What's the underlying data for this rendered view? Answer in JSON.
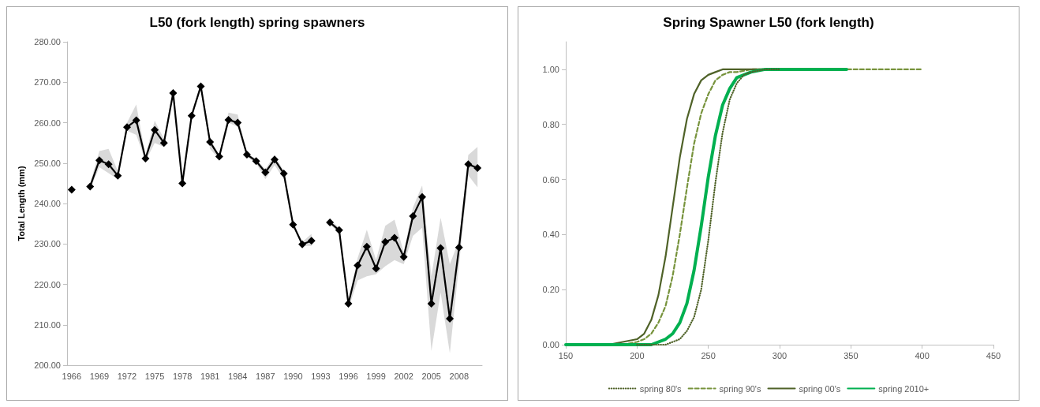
{
  "chart_data": [
    {
      "type": "line",
      "title": "L50 (fork length) spring spawners",
      "ylabel": "Total Length (mm)",
      "marker": "diamond",
      "legend": false,
      "grid": false,
      "categories": [
        "1966",
        null,
        null,
        "1969",
        null,
        null,
        "1972",
        null,
        null,
        "1975",
        null,
        null,
        "1978",
        null,
        null,
        "1981",
        null,
        null,
        "1984",
        null,
        null,
        "1987",
        null,
        null,
        "1990",
        null,
        null,
        "1993",
        null,
        null,
        "1996",
        null,
        null,
        "1999",
        null,
        null,
        "2002",
        null,
        null,
        "2005",
        null,
        null,
        "2008",
        null,
        null
      ],
      "ylim": [
        200,
        280
      ],
      "yticks": [
        {
          "value": 200,
          "label": "200.00"
        },
        {
          "value": 210,
          "label": "210.00"
        },
        {
          "value": 220,
          "label": "220.00"
        },
        {
          "value": 230,
          "label": "230.00"
        },
        {
          "value": 240,
          "label": "240.00"
        },
        {
          "value": 250,
          "label": "250.00"
        },
        {
          "value": 260,
          "label": "260.00"
        },
        {
          "value": 270,
          "label": "270.00"
        },
        {
          "value": 280,
          "label": "280.00"
        }
      ],
      "series": [
        {
          "color": "#000000",
          "values": [
            243.4,
            null,
            244.2,
            250.7,
            249.7,
            246.9,
            258.9,
            260.6,
            251.1,
            258.2,
            255.0,
            267.3,
            245.0,
            261.7,
            269.0,
            255.2,
            251.6,
            260.7,
            260.0,
            252.1,
            250.5,
            247.7,
            250.9,
            247.4,
            234.8,
            229.9,
            230.8,
            null,
            235.3,
            233.4,
            215.2,
            224.7,
            229.3,
            223.9,
            230.5,
            231.5,
            226.8,
            236.9,
            241.6,
            215.2,
            229.0,
            211.5,
            229.1,
            249.7,
            248.8
          ],
          "lower": [
            null,
            null,
            243.5,
            249,
            247.5,
            246,
            258,
            257,
            250.5,
            255,
            254,
            267,
            244,
            261,
            268.5,
            253.5,
            251,
            260,
            259,
            251.5,
            250,
            246,
            249.5,
            246,
            234.5,
            229.5,
            229.5,
            null,
            235,
            232.5,
            214,
            221,
            222,
            222.5,
            224.5,
            226,
            225,
            232,
            234,
            203.5,
            218,
            203,
            225,
            247,
            244
          ],
          "upper": [
            null,
            null,
            245,
            253,
            253.5,
            248,
            260,
            264.5,
            252,
            260.5,
            256,
            268.5,
            245.5,
            262.5,
            269.5,
            256,
            252,
            262.5,
            262,
            252.5,
            251,
            248.5,
            252,
            248,
            235.5,
            230.5,
            232.5,
            null,
            236,
            234,
            216,
            226.5,
            233.5,
            226,
            234.5,
            236,
            228,
            239,
            244.5,
            222,
            236.5,
            225,
            231,
            252,
            254
          ]
        }
      ]
    },
    {
      "type": "line",
      "title": "Spring Spawner L50 (fork length)",
      "marker": "none",
      "legend": "bottom",
      "grid": false,
      "xlim": [
        150,
        450
      ],
      "xticks": [
        150,
        200,
        250,
        300,
        350,
        400,
        450
      ],
      "ylim": [
        0,
        1.1
      ],
      "yticks": [
        {
          "value": 0,
          "label": "0.00"
        },
        {
          "value": 0.2,
          "label": "0.20"
        },
        {
          "value": 0.4,
          "label": "0.40"
        },
        {
          "value": 0.6,
          "label": "0.60"
        },
        {
          "value": 0.8,
          "label": "0.80"
        },
        {
          "value": 1,
          "label": "1.00"
        }
      ],
      "series": [
        {
          "name": "spring 80's",
          "color": "#4f6228",
          "line_style": "dotted",
          "x": [
            200,
            210,
            220,
            225,
            230,
            235,
            240,
            245,
            250,
            255,
            260,
            265,
            270,
            275,
            280,
            290,
            300
          ],
          "values": [
            0,
            0,
            0,
            0.01,
            0.02,
            0.05,
            0.1,
            0.2,
            0.38,
            0.59,
            0.77,
            0.89,
            0.95,
            0.98,
            0.99,
            1,
            1
          ]
        },
        {
          "name": "spring 90's",
          "color": "#77933c",
          "line_style": "dashed",
          "x": [
            150,
            180,
            190,
            200,
            205,
            210,
            215,
            220,
            225,
            230,
            235,
            240,
            245,
            250,
            255,
            260,
            265,
            270,
            280,
            300,
            400
          ],
          "values": [
            0,
            0,
            0,
            0.01,
            0.02,
            0.04,
            0.08,
            0.14,
            0.25,
            0.4,
            0.57,
            0.73,
            0.84,
            0.91,
            0.96,
            0.98,
            0.99,
            0.99,
            1,
            1,
            1
          ]
        },
        {
          "name": "spring 00's",
          "color": "#4f6228",
          "line_style": "solid",
          "x": [
            150,
            180,
            190,
            200,
            205,
            210,
            215,
            220,
            225,
            230,
            235,
            240,
            245,
            250,
            255,
            260,
            270,
            280,
            300
          ],
          "values": [
            0,
            0,
            0.01,
            0.02,
            0.04,
            0.09,
            0.18,
            0.32,
            0.5,
            0.68,
            0.82,
            0.91,
            0.96,
            0.98,
            0.99,
            1,
            1,
            1,
            1
          ]
        },
        {
          "name": "spring 2010+",
          "color": "#00b050",
          "line_style": "solid",
          "x": [
            150,
            180,
            190,
            200,
            210,
            220,
            225,
            230,
            235,
            240,
            245,
            250,
            255,
            260,
            265,
            270,
            280,
            290,
            300,
            347
          ],
          "values": [
            0,
            0,
            0,
            0,
            0,
            0.02,
            0.04,
            0.08,
            0.15,
            0.27,
            0.43,
            0.61,
            0.76,
            0.87,
            0.93,
            0.97,
            0.99,
            1,
            1,
            1
          ]
        }
      ]
    }
  ]
}
